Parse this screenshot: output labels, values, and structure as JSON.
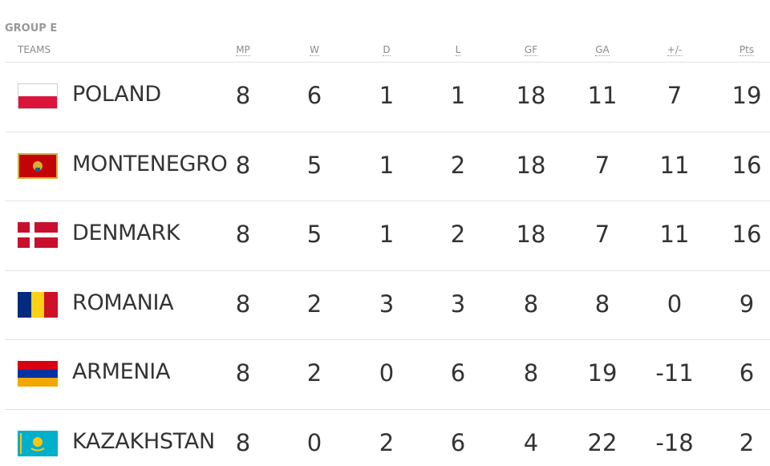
{
  "title": "GROUP E",
  "columns": [
    "TEAMS",
    "MP",
    "W",
    "D",
    "L",
    "GF",
    "GA",
    "+/-",
    "Pts"
  ],
  "rows": [
    [
      "POLAND",
      8,
      6,
      1,
      1,
      18,
      11,
      7,
      19
    ],
    [
      "MONTENEGRO",
      8,
      5,
      1,
      2,
      18,
      7,
      11,
      16
    ],
    [
      "DENMARK",
      8,
      5,
      1,
      2,
      18,
      7,
      11,
      16
    ],
    [
      "ROMANIA",
      8,
      2,
      3,
      3,
      8,
      8,
      0,
      9
    ],
    [
      "ARMENIA",
      8,
      2,
      0,
      6,
      8,
      19,
      -11,
      6
    ],
    [
      "KAZAKHSTAN",
      8,
      0,
      2,
      6,
      4,
      22,
      -18,
      2
    ]
  ]
}
